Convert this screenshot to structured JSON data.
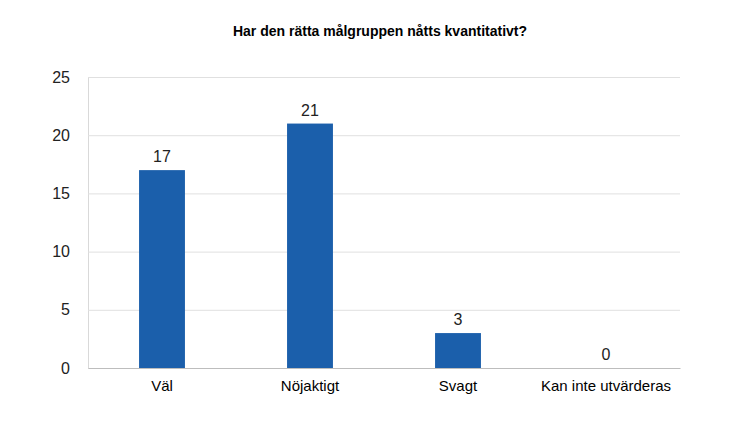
{
  "chart_data": {
    "type": "bar",
    "title": "Har den rätta målgruppen nåtts kvantitativt?",
    "categories": [
      "Väl",
      "Nöjaktigt",
      "Svagt",
      "Kan inte utvärderas"
    ],
    "values": [
      17,
      21,
      3,
      0
    ],
    "color": "#1b5fab",
    "ylim": [
      0,
      25
    ],
    "yticks": [
      0,
      5,
      10,
      15,
      20,
      25
    ],
    "grid": true,
    "data_labels": true
  }
}
